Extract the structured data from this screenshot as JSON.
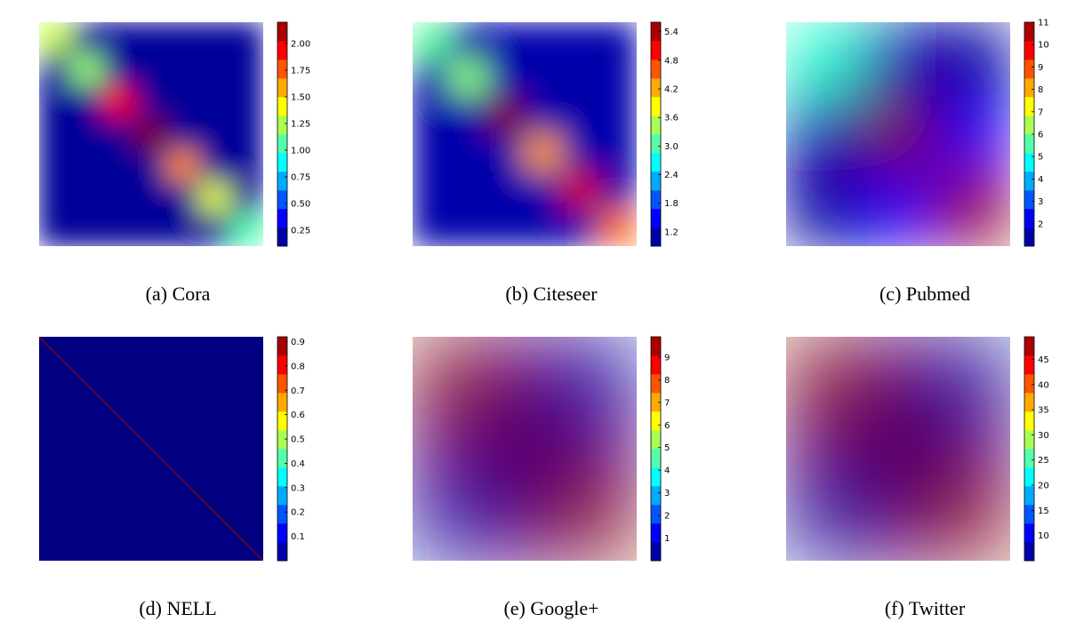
{
  "figure": {
    "captions": [
      "(a) Cora",
      "(b) Citeseer",
      "(c) Pubmed",
      "(d) NELL",
      "(e) Google+",
      "(f) Twitter"
    ]
  },
  "chart_data": [
    {
      "type": "heatmap",
      "title": "(a) Cora",
      "colormap": "jet",
      "grid_size": 7,
      "vmin": 0.1,
      "vmax": 2.2,
      "colorbar_ticks": [
        "0.25",
        "0.50",
        "0.75",
        "1.00",
        "1.25",
        "1.50",
        "1.75",
        "2.00"
      ],
      "values": [
        [
          1.3,
          0.15,
          0.15,
          0.15,
          0.15,
          0.15,
          0.15
        ],
        [
          0.15,
          1.2,
          0.15,
          0.15,
          0.15,
          0.15,
          0.15
        ],
        [
          0.15,
          0.15,
          1.95,
          0.15,
          0.15,
          0.15,
          0.15
        ],
        [
          0.15,
          0.15,
          0.15,
          2.2,
          0.15,
          0.15,
          0.15
        ],
        [
          0.15,
          0.15,
          0.15,
          0.15,
          1.65,
          0.15,
          0.15
        ],
        [
          0.15,
          0.15,
          0.15,
          0.15,
          0.15,
          1.35,
          0.15
        ],
        [
          0.15,
          0.15,
          0.15,
          0.15,
          0.15,
          0.15,
          1.05
        ]
      ]
    },
    {
      "type": "heatmap",
      "title": "(b) Citeseer",
      "colormap": "jet",
      "grid_size": 6,
      "vmin": 0.9,
      "vmax": 5.6,
      "colorbar_ticks": [
        "1.2",
        "1.8",
        "2.4",
        "3.0",
        "3.6",
        "4.2",
        "4.8",
        "5.4"
      ],
      "values": [
        [
          3.1,
          1.1,
          1.1,
          1.1,
          1.1,
          1.1
        ],
        [
          1.1,
          3.3,
          1.1,
          1.1,
          1.1,
          1.1
        ],
        [
          1.1,
          1.1,
          5.6,
          1.1,
          1.1,
          1.1
        ],
        [
          1.1,
          1.1,
          1.1,
          4.3,
          1.1,
          1.1
        ],
        [
          1.1,
          1.1,
          1.1,
          1.1,
          5.2,
          1.1
        ],
        [
          1.1,
          1.1,
          1.1,
          1.1,
          1.1,
          4.5
        ]
      ]
    },
    {
      "type": "heatmap",
      "title": "(c) Pubmed",
      "colormap": "jet",
      "grid_size": 3,
      "vmin": 1,
      "vmax": 11,
      "colorbar_ticks": [
        "2",
        "3",
        "4",
        "5",
        "6",
        "7",
        "8",
        "9",
        "10",
        "11"
      ],
      "values": [
        [
          5.2,
          1.5,
          1.3
        ],
        [
          1.5,
          11.0,
          2.2
        ],
        [
          1.3,
          2.2,
          10.8
        ]
      ]
    },
    {
      "type": "heatmap",
      "title": "(d) NELL",
      "colormap": "jet",
      "grid_size": 1,
      "diagonal_line": true,
      "vmin": 0.0,
      "vmax": 0.92,
      "colorbar_ticks": [
        "0.1",
        "0.2",
        "0.3",
        "0.4",
        "0.5",
        "0.6",
        "0.7",
        "0.8",
        "0.9"
      ],
      "values": [
        [
          0.0
        ]
      ],
      "diagonal_value": 0.9
    },
    {
      "type": "heatmap",
      "title": "(e) Google+",
      "colormap": "jet",
      "grid_size": 2,
      "vmin": 0,
      "vmax": 9.9,
      "colorbar_ticks": [
        "1",
        "2",
        "3",
        "4",
        "5",
        "6",
        "7",
        "8",
        "9"
      ],
      "values": [
        [
          9.9,
          0.3
        ],
        [
          0.3,
          9.9
        ]
      ]
    },
    {
      "type": "heatmap",
      "title": "(f) Twitter",
      "colormap": "jet",
      "grid_size": 2,
      "vmin": 5,
      "vmax": 49.5,
      "colorbar_ticks": [
        "10",
        "15",
        "20",
        "25",
        "30",
        "35",
        "40",
        "45"
      ],
      "values": [
        [
          49.5,
          6
        ],
        [
          6,
          49.5
        ]
      ]
    }
  ]
}
